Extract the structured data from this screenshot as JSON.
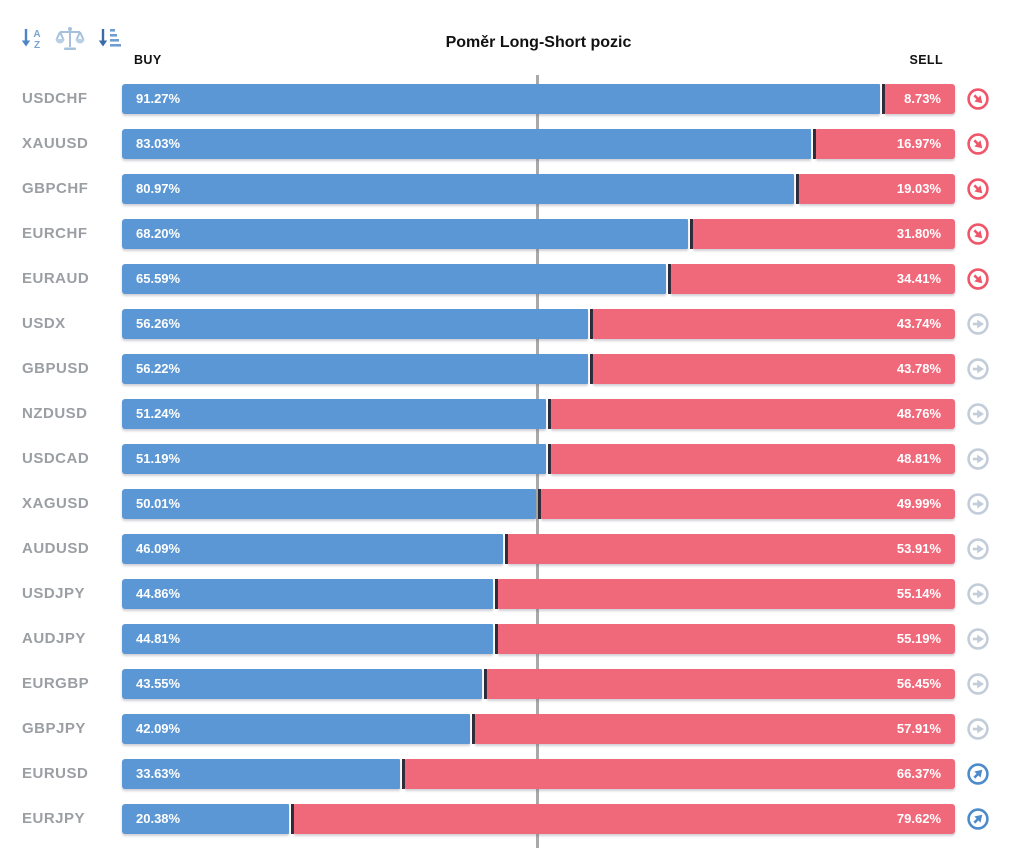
{
  "title": "Poměr Long-Short pozic",
  "columns": {
    "buy": "BUY",
    "sell": "SELL"
  },
  "toolbar": {
    "icons": [
      {
        "name": "sort-alpha-icon"
      },
      {
        "name": "balance-scale-icon"
      },
      {
        "name": "sort-amount-icon"
      }
    ]
  },
  "colors": {
    "buy_bar": "#5b97d4",
    "sell_bar": "#f0697b",
    "bar_divider": "#2e2b38",
    "midline": "#a9a9a9",
    "pair_label": "#9b9fa3",
    "trend_down_icon": "#f0566a",
    "trend_flat_icon": "#c3cdda",
    "trend_up_icon": "#4d8bcb"
  },
  "chart_data": {
    "type": "bar",
    "orientation": "horizontal-stacked",
    "title": "Poměr Long-Short pozic",
    "legend": [
      "BUY",
      "SELL"
    ],
    "legend_position": "top",
    "x_range_percent": [
      0,
      100
    ],
    "midline_percent": 50,
    "grid": false,
    "categories": [
      "USDCHF",
      "XAUUSD",
      "GBPCHF",
      "EURCHF",
      "EURAUD",
      "USDX",
      "GBPUSD",
      "NZDUSD",
      "USDCAD",
      "XAGUSD",
      "AUDUSD",
      "USDJPY",
      "AUDJPY",
      "EURGBP",
      "GBPJPY",
      "EURUSD",
      "EURJPY"
    ],
    "series": [
      {
        "name": "BUY",
        "color": "#5b97d4",
        "values": [
          91.27,
          83.03,
          80.97,
          68.2,
          65.59,
          56.26,
          56.22,
          51.24,
          51.19,
          50.01,
          46.09,
          44.86,
          44.81,
          43.55,
          42.09,
          33.63,
          20.38
        ]
      },
      {
        "name": "SELL",
        "color": "#f0697b",
        "values": [
          8.73,
          16.97,
          19.03,
          31.8,
          34.41,
          43.74,
          43.78,
          48.76,
          48.81,
          49.99,
          53.91,
          55.14,
          55.19,
          56.45,
          57.91,
          66.37,
          79.62
        ]
      }
    ],
    "trend_icons": [
      "down",
      "down",
      "down",
      "down",
      "down",
      "flat",
      "flat",
      "flat",
      "flat",
      "flat",
      "flat",
      "flat",
      "flat",
      "flat",
      "flat",
      "up",
      "up"
    ]
  },
  "rows": [
    {
      "pair": "USDCHF",
      "buy_pct": 91.27,
      "sell_pct": 8.73,
      "buy_label": "91.27%",
      "sell_label": "8.73%",
      "trend": "down"
    },
    {
      "pair": "XAUUSD",
      "buy_pct": 83.03,
      "sell_pct": 16.97,
      "buy_label": "83.03%",
      "sell_label": "16.97%",
      "trend": "down"
    },
    {
      "pair": "GBPCHF",
      "buy_pct": 80.97,
      "sell_pct": 19.03,
      "buy_label": "80.97%",
      "sell_label": "19.03%",
      "trend": "down"
    },
    {
      "pair": "EURCHF",
      "buy_pct": 68.2,
      "sell_pct": 31.8,
      "buy_label": "68.20%",
      "sell_label": "31.80%",
      "trend": "down"
    },
    {
      "pair": "EURAUD",
      "buy_pct": 65.59,
      "sell_pct": 34.41,
      "buy_label": "65.59%",
      "sell_label": "34.41%",
      "trend": "down"
    },
    {
      "pair": "USDX",
      "buy_pct": 56.26,
      "sell_pct": 43.74,
      "buy_label": "56.26%",
      "sell_label": "43.74%",
      "trend": "flat"
    },
    {
      "pair": "GBPUSD",
      "buy_pct": 56.22,
      "sell_pct": 43.78,
      "buy_label": "56.22%",
      "sell_label": "43.78%",
      "trend": "flat"
    },
    {
      "pair": "NZDUSD",
      "buy_pct": 51.24,
      "sell_pct": 48.76,
      "buy_label": "51.24%",
      "sell_label": "48.76%",
      "trend": "flat"
    },
    {
      "pair": "USDCAD",
      "buy_pct": 51.19,
      "sell_pct": 48.81,
      "buy_label": "51.19%",
      "sell_label": "48.81%",
      "trend": "flat"
    },
    {
      "pair": "XAGUSD",
      "buy_pct": 50.01,
      "sell_pct": 49.99,
      "buy_label": "50.01%",
      "sell_label": "49.99%",
      "trend": "flat"
    },
    {
      "pair": "AUDUSD",
      "buy_pct": 46.09,
      "sell_pct": 53.91,
      "buy_label": "46.09%",
      "sell_label": "53.91%",
      "trend": "flat"
    },
    {
      "pair": "USDJPY",
      "buy_pct": 44.86,
      "sell_pct": 55.14,
      "buy_label": "44.86%",
      "sell_label": "55.14%",
      "trend": "flat"
    },
    {
      "pair": "AUDJPY",
      "buy_pct": 44.81,
      "sell_pct": 55.19,
      "buy_label": "44.81%",
      "sell_label": "55.19%",
      "trend": "flat"
    },
    {
      "pair": "EURGBP",
      "buy_pct": 43.55,
      "sell_pct": 56.45,
      "buy_label": "43.55%",
      "sell_label": "56.45%",
      "trend": "flat"
    },
    {
      "pair": "GBPJPY",
      "buy_pct": 42.09,
      "sell_pct": 57.91,
      "buy_label": "42.09%",
      "sell_label": "57.91%",
      "trend": "flat"
    },
    {
      "pair": "EURUSD",
      "buy_pct": 33.63,
      "sell_pct": 66.37,
      "buy_label": "33.63%",
      "sell_label": "66.37%",
      "trend": "up"
    },
    {
      "pair": "EURJPY",
      "buy_pct": 20.38,
      "sell_pct": 79.62,
      "buy_label": "20.38%",
      "sell_label": "79.62%",
      "trend": "up"
    }
  ]
}
